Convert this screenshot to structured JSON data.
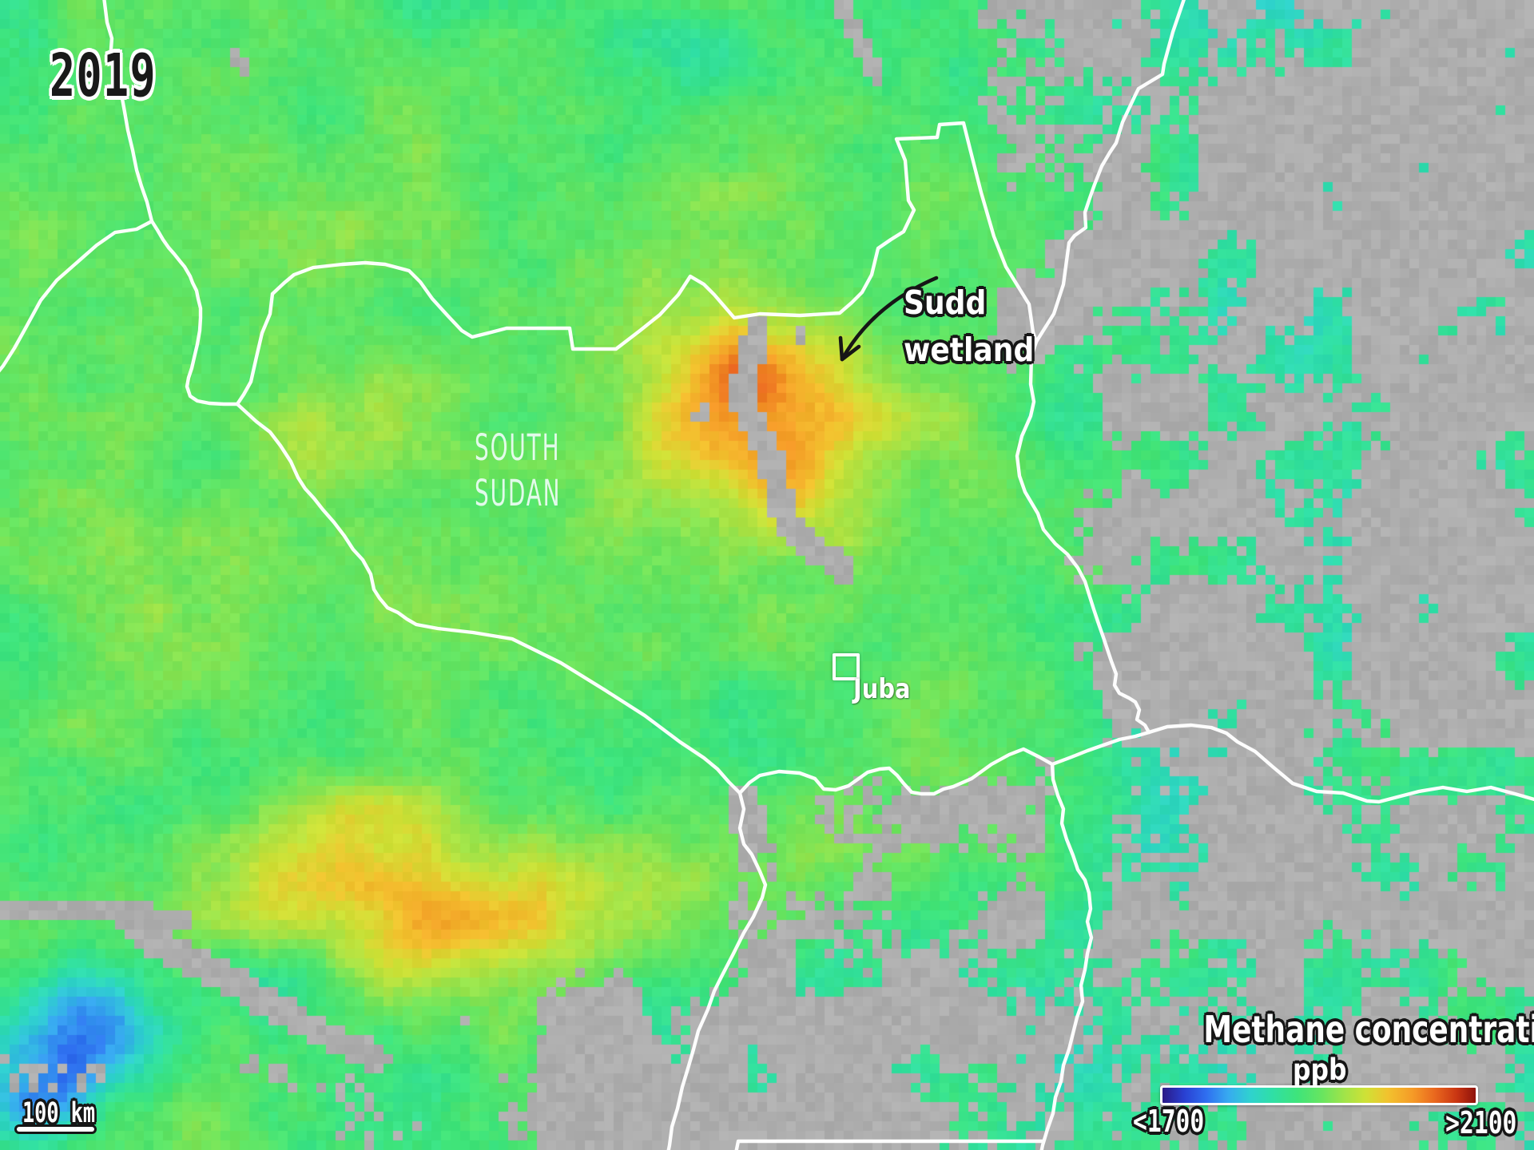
{
  "title_overlay": {
    "year": "2019"
  },
  "map": {
    "country_label": {
      "line1": "SOUTH",
      "line2": "SUDAN"
    },
    "annotation": {
      "line1": "Sudd",
      "line2": "wetland"
    },
    "city_marker": {
      "label": "Juba"
    },
    "scale_bar": {
      "label": "100 km"
    }
  },
  "legend": {
    "title": "Methane concentration",
    "unit": "ppb",
    "min_label": "<1700",
    "max_label": ">2100",
    "gradient_stops": [
      {
        "at": 0.0,
        "color": "#2b1a86"
      },
      {
        "at": 0.07,
        "color": "#2940d2"
      },
      {
        "at": 0.14,
        "color": "#2f6ff0"
      },
      {
        "at": 0.21,
        "color": "#37aaf0"
      },
      {
        "at": 0.28,
        "color": "#2fd2cf"
      },
      {
        "at": 0.35,
        "color": "#2fdfa6"
      },
      {
        "at": 0.43,
        "color": "#3ee47b"
      },
      {
        "at": 0.51,
        "color": "#68e55f"
      },
      {
        "at": 0.58,
        "color": "#a0e449"
      },
      {
        "at": 0.65,
        "color": "#cfe136"
      },
      {
        "at": 0.72,
        "color": "#f2c22e"
      },
      {
        "at": 0.8,
        "color": "#f59a27"
      },
      {
        "at": 0.87,
        "color": "#e9671e"
      },
      {
        "at": 0.94,
        "color": "#c93512"
      },
      {
        "at": 1.0,
        "color": "#8e120b"
      }
    ]
  },
  "colors": {
    "border_line": "#ffffff",
    "no_data_gray": "#a9a9a9",
    "annotation_ink": "#161616",
    "country_label_tint": "#ecfcf4"
  }
}
